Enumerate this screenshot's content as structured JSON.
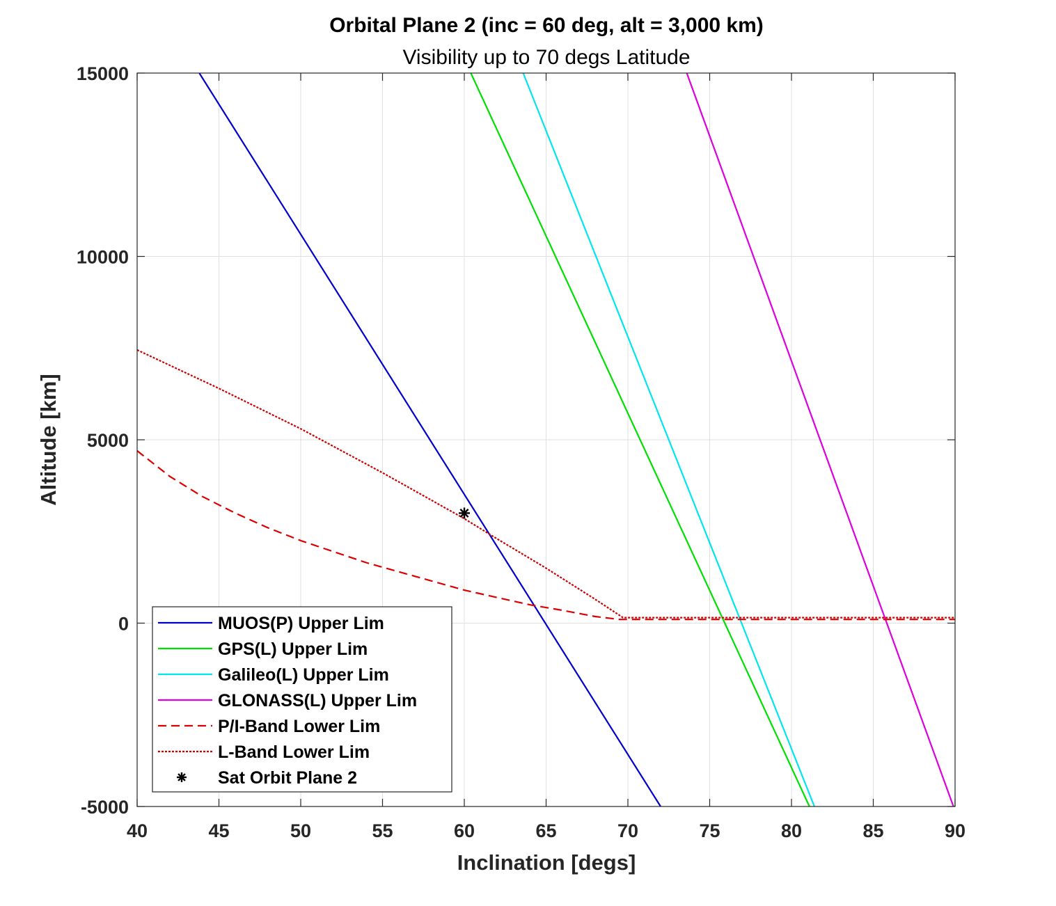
{
  "chart_data": {
    "type": "line",
    "title": "Orbital Plane 2 (inc = 60 deg, alt = 3,000 km)",
    "subtitle": "Visibility up to 70 degs Latitude",
    "xlabel": "Inclination [degs]",
    "ylabel": "Altitude [km]",
    "xlim": [
      40,
      90
    ],
    "ylim": [
      -5000,
      15000
    ],
    "xticks": [
      40,
      45,
      50,
      55,
      60,
      65,
      70,
      75,
      80,
      85,
      90
    ],
    "yticks": [
      -5000,
      0,
      5000,
      10000,
      15000
    ],
    "grid": true,
    "legend_position": "bottom-left",
    "series": [
      {
        "name": "MUOS(P) Upper Lim",
        "color": "#0000cc",
        "style": "solid",
        "x": [
          43.8,
          72.0
        ],
        "y": [
          15000,
          -5000
        ]
      },
      {
        "name": "GPS(L) Upper Lim",
        "color": "#00e000",
        "style": "solid",
        "x": [
          60.4,
          81.1
        ],
        "y": [
          15000,
          -5000
        ]
      },
      {
        "name": "Galileo(L) Upper Lim",
        "color": "#00e5ee",
        "style": "solid",
        "x": [
          63.6,
          81.4
        ],
        "y": [
          15000,
          -5000
        ]
      },
      {
        "name": "GLONASS(L) Upper Lim",
        "color": "#dd00dd",
        "style": "solid",
        "x": [
          73.6,
          89.9
        ],
        "y": [
          15000,
          -5000
        ]
      },
      {
        "name": "P/I-Band Lower Lim",
        "color": "#dd0000",
        "style": "dashed",
        "x": [
          40,
          42,
          44,
          46,
          48,
          50,
          52,
          54,
          56,
          58,
          60,
          62,
          64,
          66,
          68,
          69.5,
          70,
          75,
          80,
          85,
          90
        ],
        "y": [
          4700,
          4000,
          3450,
          3000,
          2600,
          2250,
          1950,
          1650,
          1400,
          1150,
          900,
          700,
          500,
          350,
          180,
          100,
          100,
          100,
          100,
          100,
          100
        ]
      },
      {
        "name": "L-Band Lower Lim",
        "color": "#cc0000",
        "style": "dotted",
        "x": [
          40,
          45,
          50,
          55,
          60,
          62,
          65,
          68,
          69.7,
          70,
          75,
          80,
          85,
          90
        ],
        "y": [
          7450,
          6400,
          5300,
          4100,
          2850,
          2300,
          1500,
          650,
          150,
          150,
          150,
          150,
          150,
          150
        ]
      },
      {
        "name": "Sat Orbit Plane 2",
        "color": "#000000",
        "style": "marker-star",
        "x": [
          60
        ],
        "y": [
          3000
        ]
      }
    ]
  }
}
